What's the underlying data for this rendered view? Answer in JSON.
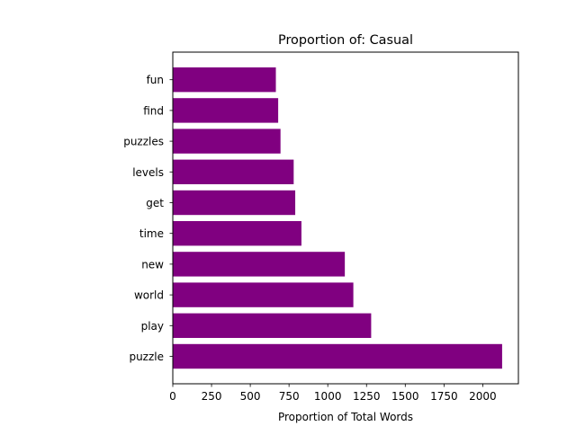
{
  "chart_data": {
    "type": "bar",
    "orientation": "horizontal",
    "title": "Proportion of: Casual",
    "xlabel": "Proportion of Total Words",
    "ylabel": "",
    "categories": [
      "puzzle",
      "play",
      "world",
      "new",
      "time",
      "get",
      "levels",
      "puzzles",
      "find",
      "fun"
    ],
    "values": [
      2125,
      1280,
      1165,
      1110,
      830,
      790,
      780,
      695,
      680,
      665
    ],
    "xlim": [
      0,
      2230
    ],
    "xticks": [
      0,
      250,
      500,
      750,
      1000,
      1250,
      1500,
      1750,
      2000
    ],
    "grid": false,
    "legend": "none",
    "bar_color": "#800080"
  }
}
